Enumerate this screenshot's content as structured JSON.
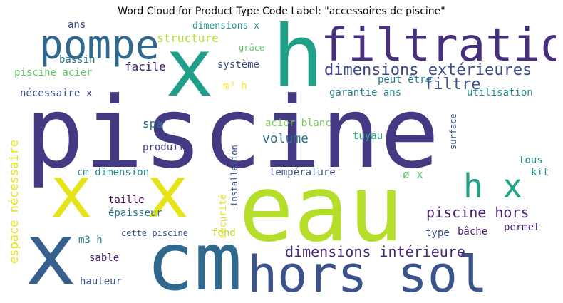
{
  "title": "Word Cloud for Product Type Code Label: \"accessoires de piscine\"",
  "chart_data": {
    "type": "wordcloud",
    "title": "Word Cloud for Product Type Code Label: \"accessoires de piscine\"",
    "words": [
      {
        "text": "piscine",
        "color": "#443983"
      },
      {
        "text": "eau",
        "color": "#b5de2b"
      },
      {
        "text": "cm",
        "color": "#31688e"
      },
      {
        "text": "hors sol",
        "color": "#3b528b"
      },
      {
        "text": "x",
        "color": "#1f9e89"
      },
      {
        "text": "h",
        "color": "#1fa187"
      },
      {
        "text": "filtration",
        "color": "#472f7d"
      },
      {
        "text": "pompe",
        "color": "#31688e"
      },
      {
        "text": "x",
        "color": "#35608d"
      },
      {
        "text": "x",
        "color": "#e5e419"
      },
      {
        "text": "x",
        "color": "#e5e419"
      },
      {
        "text": "h x",
        "color": "#20a386"
      },
      {
        "text": "dimensions extérieures",
        "color": "#3e4989"
      },
      {
        "text": "filtre",
        "color": "#3b528b"
      },
      {
        "text": "dimensions intérieure",
        "color": "#482878"
      },
      {
        "text": "piscine hors",
        "color": "#481f70"
      },
      {
        "text": "volume",
        "color": "#2c728e"
      },
      {
        "text": "structure",
        "color": "#addc30"
      },
      {
        "text": "bassin",
        "color": "#2a788e"
      },
      {
        "text": "piscine acier",
        "color": "#5ec962"
      },
      {
        "text": "facile",
        "color": "#482173"
      },
      {
        "text": "système",
        "color": "#3e4989"
      },
      {
        "text": "nécessaire x",
        "color": "#3e4989"
      },
      {
        "text": "espace nécessaire",
        "color": "#e5e419"
      },
      {
        "text": "spa",
        "color": "#2c728e"
      },
      {
        "text": "produit",
        "color": "#3e4989"
      },
      {
        "text": "cm dimension",
        "color": "#26828e"
      },
      {
        "text": "taille",
        "color": "#440154"
      },
      {
        "text": "épaisseur",
        "color": "#2c728e"
      },
      {
        "text": "m3 h",
        "color": "#2c728e"
      },
      {
        "text": "sable",
        "color": "#481f70"
      },
      {
        "text": "hauteur",
        "color": "#3b528b"
      },
      {
        "text": "cette piscine",
        "color": "#3b528b"
      },
      {
        "text": "fond",
        "color": "#b5de2b"
      },
      {
        "text": "sécurité",
        "color": "#e5e419"
      },
      {
        "text": "installation",
        "color": "#3b528b"
      },
      {
        "text": "température",
        "color": "#3b528b"
      },
      {
        "text": "ø x",
        "color": "#5ec962"
      },
      {
        "text": "tuyau",
        "color": "#29af7f"
      },
      {
        "text": "acier blanc",
        "color": "#75d054"
      },
      {
        "text": "surface",
        "color": "#3b528b"
      },
      {
        "text": "tous",
        "color": "#21918c"
      },
      {
        "text": "kit",
        "color": "#21918c"
      },
      {
        "text": "type",
        "color": "#3b528b"
      },
      {
        "text": "bâche",
        "color": "#481f70"
      },
      {
        "text": "permet",
        "color": "#482173"
      },
      {
        "text": "utilisation",
        "color": "#21918c"
      },
      {
        "text": "peut être",
        "color": "#2a788e"
      },
      {
        "text": "garantie ans",
        "color": "#26828e"
      },
      {
        "text": "m³ h",
        "color": "#fde725"
      },
      {
        "text": "grâce",
        "color": "#5ec962"
      },
      {
        "text": "dimensions x",
        "color": "#21918c"
      },
      {
        "text": "ans",
        "color": "#3e4989"
      }
    ]
  }
}
